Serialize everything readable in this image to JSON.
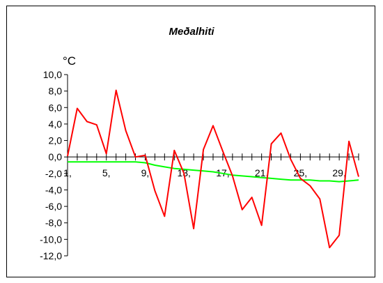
{
  "chart_data": {
    "type": "line",
    "title": "Meðalhiti",
    "ylabel": "°C",
    "xlabel": "",
    "ylim": [
      -12,
      10
    ],
    "yticks": [
      10,
      8,
      6,
      4,
      2,
      0,
      -2,
      -4,
      -6,
      -8,
      -10,
      -12
    ],
    "ytick_labels": [
      "10,0",
      "8,0",
      "6,0",
      "4,0",
      "2,0",
      "0,0",
      "-2,0",
      "-4,0",
      "-6,0",
      "-8,0",
      "-10,0",
      "-12,0"
    ],
    "x": [
      1,
      2,
      3,
      4,
      5,
      6,
      7,
      8,
      9,
      10,
      11,
      12,
      13,
      14,
      15,
      16,
      17,
      18,
      19,
      20,
      21,
      22,
      23,
      24,
      25,
      26,
      27,
      28,
      29,
      30,
      31
    ],
    "xtick_values": [
      1,
      5,
      9,
      13,
      17,
      21,
      25,
      29
    ],
    "xtick_labels": [
      "1,",
      "5,",
      "9,",
      "13,",
      "17,",
      "21,",
      "25,",
      "29,"
    ],
    "grid": false,
    "series": [
      {
        "color": "#ff0000",
        "values": [
          0.1,
          5.9,
          4.3,
          3.9,
          0.4,
          8.1,
          3.2,
          0.0,
          0.2,
          -4.1,
          -7.2,
          0.8,
          -2.0,
          -8.7,
          0.9,
          3.8,
          0.7,
          -2.3,
          -6.4,
          -4.9,
          -8.3,
          1.6,
          2.9,
          -0.3,
          -2.6,
          -3.5,
          -5.1,
          -11.0,
          -9.5,
          1.9,
          -2.4
        ]
      },
      {
        "color": "#00ff00",
        "values": [
          -0.6,
          -0.6,
          -0.6,
          -0.6,
          -0.6,
          -0.6,
          -0.6,
          -0.6,
          -0.7,
          -1.0,
          -1.2,
          -1.4,
          -1.5,
          -1.6,
          -1.7,
          -1.8,
          -2.0,
          -2.2,
          -2.3,
          -2.4,
          -2.5,
          -2.6,
          -2.7,
          -2.8,
          -2.8,
          -2.8,
          -2.9,
          -2.9,
          -3.0,
          -2.9,
          -2.8
        ]
      }
    ]
  }
}
